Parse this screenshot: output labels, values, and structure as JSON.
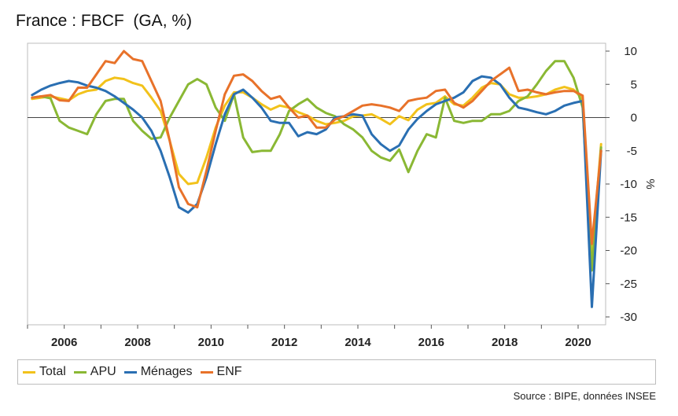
{
  "chart_data": {
    "type": "line",
    "title": "France : FBCF  (GA, %)",
    "ylabel": "%",
    "xlabel": "",
    "ylim": [
      -30,
      10
    ],
    "xlim": [
      2005,
      2020.75
    ],
    "y_ticks": [
      10,
      5,
      0,
      -5,
      -10,
      -15,
      -20,
      -25,
      -30
    ],
    "x_ticks": [
      2006,
      2008,
      2010,
      2012,
      2014,
      2016,
      2018,
      2020
    ],
    "y_axis_side": "right",
    "grid": false,
    "legend_position": "bottom",
    "x": [
      2005.125,
      2005.375,
      2005.625,
      2005.875,
      2006.125,
      2006.375,
      2006.625,
      2006.875,
      2007.125,
      2007.375,
      2007.625,
      2007.875,
      2008.125,
      2008.375,
      2008.625,
      2008.875,
      2009.125,
      2009.375,
      2009.625,
      2009.875,
      2010.125,
      2010.375,
      2010.625,
      2010.875,
      2011.125,
      2011.375,
      2011.625,
      2011.875,
      2012.125,
      2012.375,
      2012.625,
      2012.875,
      2013.125,
      2013.375,
      2013.625,
      2013.875,
      2014.125,
      2014.375,
      2014.625,
      2014.875,
      2015.125,
      2015.375,
      2015.625,
      2015.875,
      2016.125,
      2016.375,
      2016.625,
      2016.875,
      2017.125,
      2017.375,
      2017.625,
      2017.875,
      2018.125,
      2018.375,
      2018.625,
      2018.875,
      2019.125,
      2019.375,
      2019.625,
      2019.875,
      2020.125,
      2020.375,
      2020.625
    ],
    "series": [
      {
        "name": "Total",
        "color": "#f2c21b",
        "values": [
          2.8,
          3.0,
          3.2,
          2.9,
          2.6,
          3.5,
          4.0,
          4.2,
          5.5,
          6.0,
          5.8,
          5.2,
          4.8,
          3.0,
          1.0,
          -3.5,
          -8.5,
          -10.0,
          -9.8,
          -6.0,
          -1.5,
          1.8,
          3.8,
          3.8,
          3.0,
          2.0,
          1.2,
          1.8,
          1.5,
          0.8,
          0.3,
          -0.5,
          -1.0,
          -0.8,
          -0.5,
          0.2,
          0.3,
          0.5,
          -0.2,
          -1.0,
          0.2,
          -0.4,
          1.2,
          2.0,
          2.2,
          3.2,
          2.0,
          1.8,
          3.0,
          4.5,
          5.2,
          5.0,
          3.5,
          3.0,
          3.0,
          3.2,
          3.5,
          4.2,
          4.6,
          4.2,
          2.8,
          -21.0,
          -4.0
        ]
      },
      {
        "name": "APU",
        "color": "#8ab834",
        "values": [
          3.0,
          3.2,
          2.9,
          -0.5,
          -1.5,
          -2.0,
          -2.5,
          0.5,
          2.5,
          2.8,
          2.8,
          -0.5,
          -2.0,
          -3.2,
          -3.0,
          0.0,
          2.5,
          5.0,
          5.8,
          5.0,
          1.5,
          -0.5,
          3.5,
          -3.0,
          -5.2,
          -5.0,
          -5.0,
          -2.5,
          1.0,
          2.0,
          2.8,
          1.5,
          0.7,
          0.2,
          -1.0,
          -1.8,
          -3.0,
          -5.0,
          -6.0,
          -6.5,
          -4.8,
          -8.2,
          -5.0,
          -2.5,
          -3.0,
          3.0,
          -0.5,
          -0.8,
          -0.5,
          -0.5,
          0.5,
          0.5,
          1.0,
          2.5,
          3.2,
          5.0,
          7.0,
          8.5,
          8.5,
          6.0,
          1.5,
          -23.0,
          -4.5
        ]
      },
      {
        "name": "Ménages",
        "color": "#2a6fb2",
        "values": [
          3.4,
          4.2,
          4.8,
          5.2,
          5.5,
          5.3,
          4.8,
          4.5,
          4.0,
          3.2,
          2.2,
          1.2,
          0.0,
          -2.0,
          -5.0,
          -9.0,
          -13.5,
          -14.3,
          -13.0,
          -9.0,
          -4.0,
          0.5,
          3.5,
          4.2,
          3.0,
          1.5,
          -0.5,
          -0.8,
          -0.8,
          -2.8,
          -2.2,
          -2.5,
          -1.8,
          0.0,
          0.2,
          0.5,
          0.3,
          -2.5,
          -4.0,
          -5.0,
          -4.2,
          -1.8,
          -0.2,
          1.0,
          2.0,
          2.5,
          3.0,
          3.8,
          5.5,
          6.2,
          6.0,
          5.0,
          3.0,
          1.5,
          1.2,
          0.8,
          0.5,
          1.0,
          1.8,
          2.2,
          2.5,
          -28.5,
          -5.0
        ]
      },
      {
        "name": "ENF",
        "color": "#e8722a",
        "values": [
          3.0,
          3.2,
          3.4,
          2.6,
          2.5,
          4.5,
          4.5,
          6.5,
          8.5,
          8.2,
          10.0,
          8.8,
          8.5,
          5.5,
          2.5,
          -3.5,
          -10.5,
          -13.0,
          -13.5,
          -8.0,
          -2.0,
          3.5,
          6.3,
          6.5,
          5.5,
          4.0,
          2.8,
          3.2,
          1.5,
          0.0,
          0.3,
          -1.5,
          -1.5,
          -0.3,
          0.2,
          1.0,
          1.8,
          2.0,
          1.8,
          1.5,
          1.0,
          2.5,
          2.8,
          3.0,
          4.0,
          4.2,
          2.2,
          1.5,
          2.5,
          4.0,
          5.5,
          6.5,
          7.5,
          4.0,
          4.2,
          3.8,
          3.5,
          3.8,
          4.0,
          4.0,
          3.3,
          -19.0,
          -5.0
        ]
      }
    ],
    "source": "Source : BIPE, données INSEE"
  }
}
